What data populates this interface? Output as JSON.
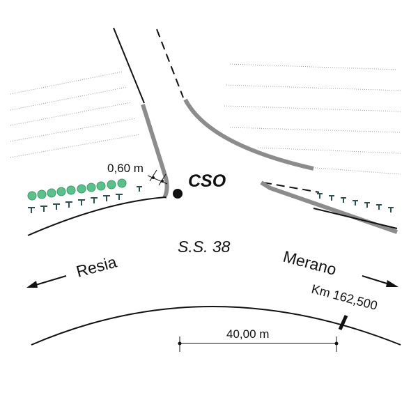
{
  "labels": {
    "width": "0,60 m",
    "point": "CSO",
    "road": "S.S. 38",
    "left_direction": "Resia",
    "right_direction": "Merano",
    "kilometer": "Km 162,500",
    "distance": "40,00 m"
  }
}
